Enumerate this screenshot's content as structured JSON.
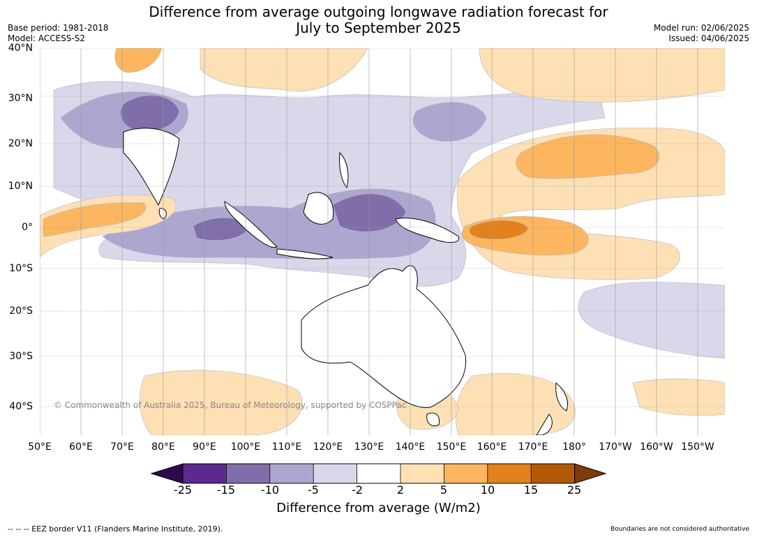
{
  "title": {
    "line1": "Difference from average outgoing longwave radiation forecast for",
    "line2": "July to September 2025"
  },
  "meta": {
    "base_period": "Base period: 1981-2018",
    "model": "Model: ACCESS-S2",
    "model_run": "Model run: 02/06/2025",
    "issued": "Issued: 04/06/2025"
  },
  "map": {
    "lat_labels": [
      "40°N",
      "30°N",
      "20°N",
      "10°N",
      "0°",
      "10°S",
      "20°S",
      "30°S",
      "40°S"
    ],
    "lon_labels": [
      "50°E",
      "60°E",
      "70°E",
      "80°E",
      "90°E",
      "100°E",
      "110°E",
      "120°E",
      "130°E",
      "140°E",
      "150°E",
      "160°E",
      "170°E",
      "180°",
      "170°W",
      "160°W",
      "150°W"
    ],
    "copyright": "© Commonwealth of Australia 2025, Bureau of Meteorology, supported by COSPPac",
    "land_color": "#ffffff",
    "coast_color": "#000000"
  },
  "colorbar": {
    "ticks": [
      "-25",
      "-15",
      "-10",
      "-5",
      "-2",
      "2",
      "5",
      "10",
      "15",
      "25"
    ],
    "colors": [
      "#2d0a4e",
      "#5b2a8c",
      "#7f6eaa",
      "#ada7cf",
      "#d8d8ea",
      "#ffffff",
      "#fde0b4",
      "#fbb65f",
      "#e2821c",
      "#b35806",
      "#7f3b08"
    ],
    "title": "Difference from average (W/m2)"
  },
  "footer": {
    "eez": "--  --  -- EEZ border V11 (Flanders Marine Institute, 2019).",
    "boundaries": "Boundaries are not considered authoritative"
  }
}
